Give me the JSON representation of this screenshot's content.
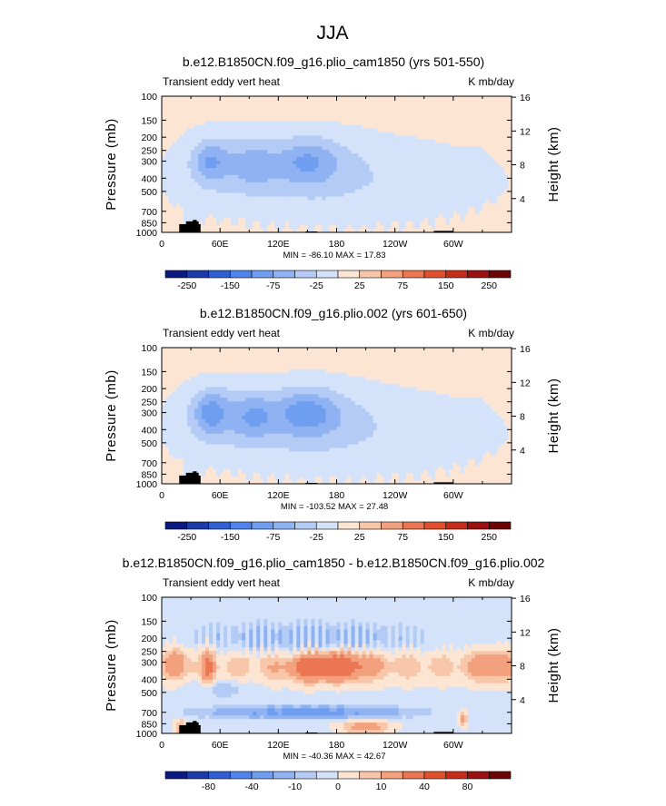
{
  "figure": {
    "suptitle": "JJA"
  },
  "chart_data": [
    {
      "type": "heatmap",
      "title": "b.e12.B1850CN.f09_g16.plio_cam1850 (yrs 501-550)",
      "left_label": "Transient eddy vert heat",
      "right_label": "K mb/day",
      "ylabel": "Pressure (mb)",
      "ylabel_right": "Height (km)",
      "xticks": [
        "0",
        "60E",
        "120E",
        "180",
        "120W",
        "60W"
      ],
      "yticks": [
        "100",
        "150",
        "200",
        "250",
        "300",
        "400",
        "500",
        "700",
        "850",
        "1000"
      ],
      "yticks_right": [
        "16",
        "12",
        "8",
        "4"
      ],
      "ylim": [
        1000,
        100
      ],
      "min_max_text": "MIN = -86.10   MAX =  17.83",
      "min": -86.1,
      "max": 17.83,
      "colorbar_labels": [
        "-250",
        "-150",
        "-75",
        "-25",
        "25",
        "75",
        "150",
        "250"
      ],
      "levels": [
        -250,
        -200,
        -150,
        -100,
        -75,
        -50,
        -25,
        0,
        25,
        50,
        75,
        100,
        150,
        200,
        250
      ],
      "colors": [
        "#0a1a7e",
        "#1c3aa8",
        "#2f5fd0",
        "#4e84ec",
        "#6f9ef0",
        "#8fb2f2",
        "#b3cbf5",
        "#d4e3fa",
        "#fde5d3",
        "#f8c7aa",
        "#f2a07d",
        "#ea7752",
        "#e0502f",
        "#c52d1b",
        "#9b1010",
        "#6b0505"
      ]
    },
    {
      "type": "heatmap",
      "title": "b.e12.B1850CN.f09_g16.plio.002 (yrs 601-650)",
      "left_label": "Transient eddy vert heat",
      "right_label": "K mb/day",
      "ylabel": "Pressure (mb)",
      "ylabel_right": "Height (km)",
      "xticks": [
        "0",
        "60E",
        "120E",
        "180",
        "120W",
        "60W"
      ],
      "yticks": [
        "100",
        "150",
        "200",
        "250",
        "300",
        "400",
        "500",
        "700",
        "850",
        "1000"
      ],
      "yticks_right": [
        "16",
        "12",
        "8",
        "4"
      ],
      "ylim": [
        1000,
        100
      ],
      "min_max_text": "MIN = -103.52   MAX =  27.48",
      "min": -103.52,
      "max": 27.48,
      "colorbar_labels": [
        "-250",
        "-150",
        "-75",
        "-25",
        "25",
        "75",
        "150",
        "250"
      ],
      "levels": [
        -250,
        -200,
        -150,
        -100,
        -75,
        -50,
        -25,
        0,
        25,
        50,
        75,
        100,
        150,
        200,
        250
      ],
      "colors": [
        "#0a1a7e",
        "#1c3aa8",
        "#2f5fd0",
        "#4e84ec",
        "#6f9ef0",
        "#8fb2f2",
        "#b3cbf5",
        "#d4e3fa",
        "#fde5d3",
        "#f8c7aa",
        "#f2a07d",
        "#ea7752",
        "#e0502f",
        "#c52d1b",
        "#9b1010",
        "#6b0505"
      ]
    },
    {
      "type": "heatmap",
      "title": "b.e12.B1850CN.f09_g16.plio_cam1850 - b.e12.B1850CN.f09_g16.plio.002",
      "left_label": "Transient eddy vert heat",
      "right_label": "K mb/day",
      "ylabel": "Pressure (mb)",
      "ylabel_right": "Height (km)",
      "xticks": [
        "0",
        "60E",
        "120E",
        "180",
        "120W",
        "60W"
      ],
      "yticks": [
        "100",
        "150",
        "200",
        "250",
        "300",
        "400",
        "500",
        "700",
        "850",
        "1000"
      ],
      "yticks_right": [
        "16",
        "12",
        "8",
        "4"
      ],
      "ylim": [
        1000,
        100
      ],
      "min_max_text": "MIN = -40.36   MAX =  42.67",
      "min": -40.36,
      "max": 42.67,
      "colorbar_labels": [
        "-80",
        "-40",
        "-10",
        "0",
        "10",
        "40",
        "80"
      ],
      "levels": [
        -100,
        -80,
        -60,
        -40,
        -20,
        -10,
        -5,
        0,
        5,
        10,
        20,
        40,
        60,
        80,
        100
      ],
      "colors": [
        "#0a1a7e",
        "#1c3aa8",
        "#2f5fd0",
        "#4e84ec",
        "#6f9ef0",
        "#8fb2f2",
        "#b3cbf5",
        "#d4e3fa",
        "#fde5d3",
        "#f8c7aa",
        "#f2a07d",
        "#ea7752",
        "#e0502f",
        "#c52d1b",
        "#9b1010",
        "#6b0505"
      ]
    }
  ]
}
